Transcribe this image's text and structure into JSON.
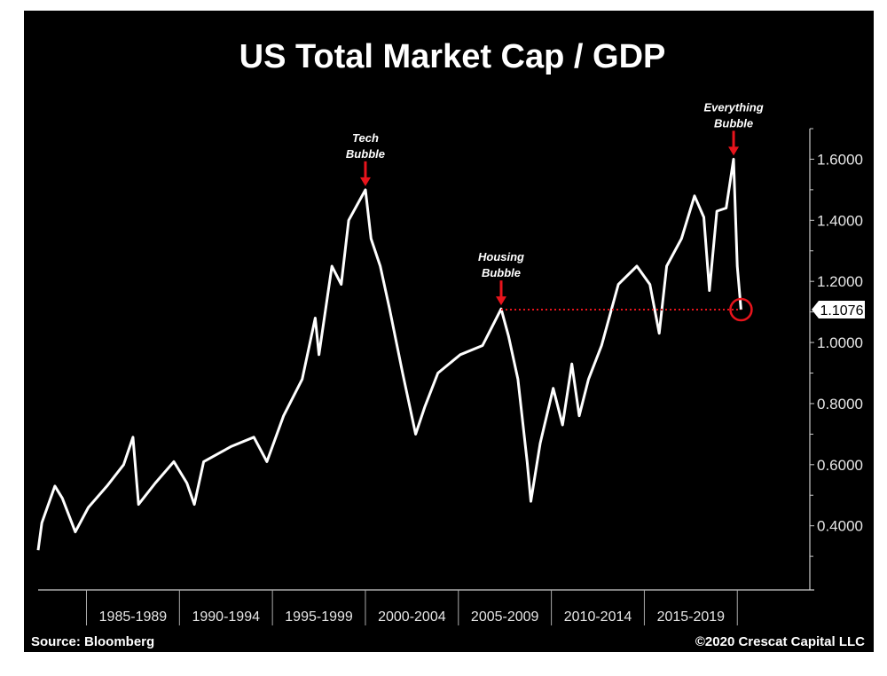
{
  "chart_data": {
    "type": "line",
    "title": "US Total Market Cap / GDP",
    "source": "Source: Bloomberg",
    "copyright": "©2020 Crescat Capital LLC",
    "x_categories": [
      "1985-1989",
      "1990-1994",
      "1995-1999",
      "2000-2004",
      "2005-2009",
      "2010-2014",
      "2015-2019"
    ],
    "y_ticks": [
      "1.6000",
      "1.4000",
      "1.2000",
      "1.0000",
      "0.8000",
      "0.6000",
      "0.4000"
    ],
    "ylim": [
      0.19,
      1.7
    ],
    "xlim": [
      1982.4,
      2023.9
    ],
    "grid": false,
    "y_axis_side": "right",
    "last_value_label": "1.1076",
    "colors": {
      "background": "#000000",
      "line": "#ffffff",
      "annotation": "#e8141c"
    },
    "annotations": [
      {
        "lines": [
          "Tech",
          "Bubble"
        ],
        "x": 2000.0,
        "y": 1.5
      },
      {
        "lines": [
          "Housing",
          "Bubble"
        ],
        "x": 2007.3,
        "y": 1.11
      },
      {
        "lines": [
          "Everything",
          "Bubble"
        ],
        "x": 2019.8,
        "y": 1.6
      }
    ],
    "reference_line": {
      "from_x": 2007.3,
      "to_x": 2020.2,
      "y": 1.1076
    },
    "series": [
      {
        "x": [
          1982.4,
          1982.6,
          1983.3,
          1983.7,
          1984.4,
          1985.1,
          1986.1,
          1987.0,
          1987.5,
          1987.8,
          1988.7,
          1989.7,
          1990.4,
          1990.8,
          1991.3,
          1992.8,
          1994.0,
          1994.7,
          1995.6,
          1996.6,
          1997.3,
          1997.5,
          1998.2,
          1998.7,
          1999.1,
          2000.0,
          2000.3,
          2000.8,
          2001.3,
          2002.0,
          2002.7,
          2003.2,
          2003.9,
          2005.1,
          2006.3,
          2007.3,
          2007.7,
          2008.2,
          2008.7,
          2008.9,
          2009.4,
          2010.1,
          2010.6,
          2011.1,
          2011.5,
          2012.0,
          2012.7,
          2013.6,
          2014.6,
          2015.3,
          2015.8,
          2016.2,
          2017.0,
          2017.7,
          2018.2,
          2018.5,
          2018.9,
          2019.4,
          2019.8,
          2020.0,
          2020.2
        ],
        "values": [
          0.32,
          0.41,
          0.53,
          0.49,
          0.38,
          0.46,
          0.53,
          0.6,
          0.69,
          0.47,
          0.54,
          0.61,
          0.54,
          0.47,
          0.61,
          0.66,
          0.69,
          0.61,
          0.76,
          0.88,
          1.08,
          0.96,
          1.25,
          1.19,
          1.4,
          1.5,
          1.34,
          1.25,
          1.11,
          0.9,
          0.7,
          0.79,
          0.9,
          0.96,
          0.99,
          1.11,
          1.02,
          0.88,
          0.61,
          0.48,
          0.67,
          0.85,
          0.73,
          0.93,
          0.76,
          0.88,
          0.99,
          1.19,
          1.25,
          1.19,
          1.03,
          1.25,
          1.34,
          1.48,
          1.41,
          1.17,
          1.43,
          1.44,
          1.6,
          1.25,
          1.1076
        ]
      }
    ]
  }
}
